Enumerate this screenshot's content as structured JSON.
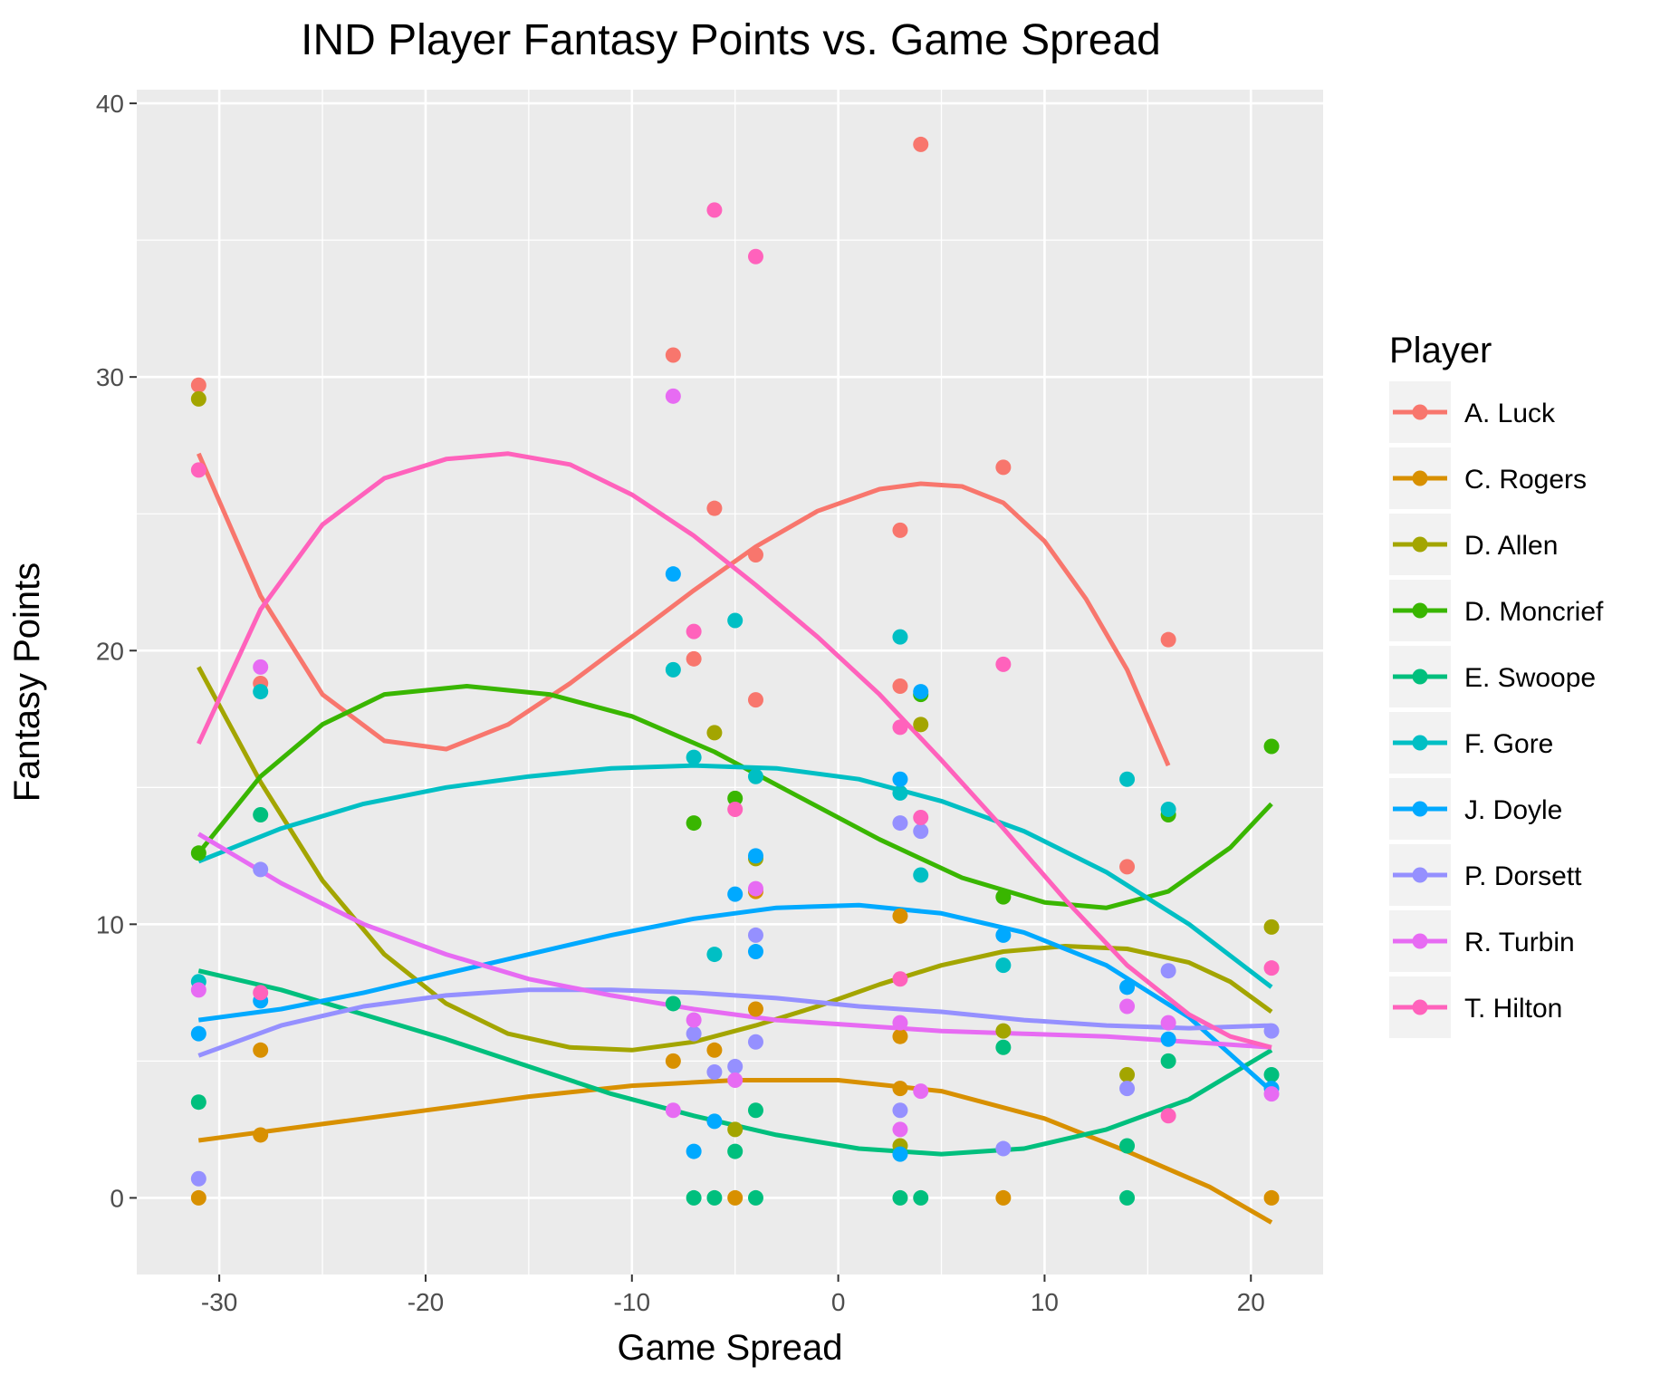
{
  "chart_data": {
    "type": "scatter",
    "title": "IND Player Fantasy Points vs. Game Spread",
    "xlabel": "Game Spread",
    "ylabel": "Fantasy Points",
    "xlim": [
      -34,
      23.5
    ],
    "ylim": [
      -2.8,
      40.5
    ],
    "x_ticks": [
      -30,
      -20,
      -10,
      0,
      10,
      20
    ],
    "y_ticks": [
      0,
      10,
      20,
      30,
      40
    ],
    "grid": true,
    "legend_title": "Player",
    "legend_position": "right",
    "series": [
      {
        "name": "A. Luck",
        "color": "#F8766D",
        "points": [
          [
            -31,
            29.7
          ],
          [
            -28,
            18.8
          ],
          [
            -8,
            30.8
          ],
          [
            -7,
            19.7
          ],
          [
            -6,
            25.2
          ],
          [
            -4,
            23.5
          ],
          [
            -4,
            18.2
          ],
          [
            3,
            24.4
          ],
          [
            3,
            18.7
          ],
          [
            4,
            38.5
          ],
          [
            8,
            26.7
          ],
          [
            14,
            12.1
          ],
          [
            16,
            20.4
          ]
        ],
        "trend": [
          [
            -31,
            27.2
          ],
          [
            -28,
            22.0
          ],
          [
            -25,
            18.4
          ],
          [
            -22,
            16.7
          ],
          [
            -19,
            16.4
          ],
          [
            -16,
            17.3
          ],
          [
            -13,
            18.8
          ],
          [
            -10,
            20.5
          ],
          [
            -7,
            22.2
          ],
          [
            -4,
            23.8
          ],
          [
            -1,
            25.1
          ],
          [
            2,
            25.9
          ],
          [
            4,
            26.1
          ],
          [
            6,
            26.0
          ],
          [
            8,
            25.4
          ],
          [
            10,
            24.0
          ],
          [
            12,
            21.9
          ],
          [
            14,
            19.3
          ],
          [
            16,
            15.8
          ]
        ]
      },
      {
        "name": "C. Rogers",
        "color": "#D89000",
        "points": [
          [
            -31,
            0.0
          ],
          [
            -28,
            5.4
          ],
          [
            -28,
            2.3
          ],
          [
            -8,
            5.0
          ],
          [
            -6,
            5.4
          ],
          [
            -5,
            0.0
          ],
          [
            -4,
            11.2
          ],
          [
            -4,
            6.9
          ],
          [
            3,
            10.3
          ],
          [
            3,
            5.9
          ],
          [
            3,
            4.0
          ],
          [
            8,
            0.0
          ],
          [
            21,
            0.0
          ]
        ],
        "trend": [
          [
            -31,
            2.1
          ],
          [
            -25,
            2.7
          ],
          [
            -20,
            3.2
          ],
          [
            -15,
            3.7
          ],
          [
            -10,
            4.1
          ],
          [
            -5,
            4.3
          ],
          [
            0,
            4.3
          ],
          [
            5,
            3.9
          ],
          [
            10,
            2.9
          ],
          [
            14,
            1.7
          ],
          [
            18,
            0.4
          ],
          [
            21,
            -0.9
          ]
        ]
      },
      {
        "name": "D. Allen",
        "color": "#A3A500",
        "points": [
          [
            -31,
            29.2
          ],
          [
            -6,
            17.0
          ],
          [
            -5,
            2.5
          ],
          [
            -4,
            12.4
          ],
          [
            3,
            1.9
          ],
          [
            4,
            17.3
          ],
          [
            8,
            6.1
          ],
          [
            14,
            4.5
          ],
          [
            21,
            9.9
          ]
        ],
        "trend": [
          [
            -31,
            19.4
          ],
          [
            -28,
            15.2
          ],
          [
            -25,
            11.6
          ],
          [
            -22,
            8.9
          ],
          [
            -19,
            7.1
          ],
          [
            -16,
            6.0
          ],
          [
            -13,
            5.5
          ],
          [
            -10,
            5.4
          ],
          [
            -7,
            5.7
          ],
          [
            -4,
            6.3
          ],
          [
            -1,
            7.0
          ],
          [
            2,
            7.8
          ],
          [
            5,
            8.5
          ],
          [
            8,
            9.0
          ],
          [
            11,
            9.2
          ],
          [
            14,
            9.1
          ],
          [
            17,
            8.6
          ],
          [
            19,
            7.9
          ],
          [
            21,
            6.8
          ]
        ]
      },
      {
        "name": "D. Moncrief",
        "color": "#39B600",
        "points": [
          [
            -31,
            12.6
          ],
          [
            -7,
            13.7
          ],
          [
            -5,
            14.6
          ],
          [
            4,
            18.4
          ],
          [
            8,
            11.0
          ],
          [
            16,
            14.0
          ],
          [
            21,
            16.5
          ]
        ],
        "trend": [
          [
            -31,
            12.6
          ],
          [
            -28,
            15.4
          ],
          [
            -25,
            17.3
          ],
          [
            -22,
            18.4
          ],
          [
            -18,
            18.7
          ],
          [
            -14,
            18.4
          ],
          [
            -10,
            17.6
          ],
          [
            -6,
            16.3
          ],
          [
            -2,
            14.7
          ],
          [
            2,
            13.1
          ],
          [
            6,
            11.7
          ],
          [
            10,
            10.8
          ],
          [
            13,
            10.6
          ],
          [
            16,
            11.2
          ],
          [
            19,
            12.8
          ],
          [
            21,
            14.4
          ]
        ]
      },
      {
        "name": "E. Swoope",
        "color": "#00BF7D",
        "points": [
          [
            -31,
            3.5
          ],
          [
            -28,
            14.0
          ],
          [
            -8,
            7.1
          ],
          [
            -7,
            0.0
          ],
          [
            -6,
            0.0
          ],
          [
            -5,
            1.7
          ],
          [
            -4,
            3.2
          ],
          [
            -4,
            0.0
          ],
          [
            3,
            0.0
          ],
          [
            4,
            0.0
          ],
          [
            8,
            5.5
          ],
          [
            14,
            1.9
          ],
          [
            14,
            0.0
          ],
          [
            16,
            5.0
          ],
          [
            21,
            4.5
          ]
        ],
        "trend": [
          [
            -31,
            8.3
          ],
          [
            -27,
            7.6
          ],
          [
            -23,
            6.7
          ],
          [
            -19,
            5.8
          ],
          [
            -15,
            4.8
          ],
          [
            -11,
            3.8
          ],
          [
            -7,
            3.0
          ],
          [
            -3,
            2.3
          ],
          [
            1,
            1.8
          ],
          [
            5,
            1.6
          ],
          [
            9,
            1.8
          ],
          [
            13,
            2.5
          ],
          [
            17,
            3.6
          ],
          [
            21,
            5.4
          ]
        ]
      },
      {
        "name": "F. Gore",
        "color": "#00BFC4",
        "points": [
          [
            -31,
            7.9
          ],
          [
            -28,
            18.5
          ],
          [
            -8,
            19.3
          ],
          [
            -7,
            16.1
          ],
          [
            -6,
            8.9
          ],
          [
            -5,
            21.1
          ],
          [
            -4,
            15.4
          ],
          [
            3,
            20.5
          ],
          [
            3,
            14.8
          ],
          [
            4,
            11.8
          ],
          [
            8,
            8.5
          ],
          [
            14,
            15.3
          ],
          [
            16,
            14.2
          ]
        ],
        "trend": [
          [
            -31,
            12.3
          ],
          [
            -27,
            13.5
          ],
          [
            -23,
            14.4
          ],
          [
            -19,
            15.0
          ],
          [
            -15,
            15.4
          ],
          [
            -11,
            15.7
          ],
          [
            -7,
            15.8
          ],
          [
            -3,
            15.7
          ],
          [
            1,
            15.3
          ],
          [
            5,
            14.5
          ],
          [
            9,
            13.4
          ],
          [
            13,
            11.9
          ],
          [
            17,
            10.0
          ],
          [
            21,
            7.7
          ]
        ]
      },
      {
        "name": "J. Doyle",
        "color": "#00A9FF",
        "points": [
          [
            -31,
            6.0
          ],
          [
            -28,
            7.2
          ],
          [
            -8,
            22.8
          ],
          [
            -7,
            1.7
          ],
          [
            -6,
            2.8
          ],
          [
            -5,
            11.1
          ],
          [
            -4,
            12.5
          ],
          [
            -4,
            9.0
          ],
          [
            3,
            15.3
          ],
          [
            3,
            1.6
          ],
          [
            4,
            18.5
          ],
          [
            8,
            9.6
          ],
          [
            14,
            7.7
          ],
          [
            16,
            5.8
          ],
          [
            21,
            4.0
          ]
        ],
        "trend": [
          [
            -31,
            6.5
          ],
          [
            -27,
            6.9
          ],
          [
            -23,
            7.5
          ],
          [
            -19,
            8.2
          ],
          [
            -15,
            8.9
          ],
          [
            -11,
            9.6
          ],
          [
            -7,
            10.2
          ],
          [
            -3,
            10.6
          ],
          [
            1,
            10.7
          ],
          [
            5,
            10.4
          ],
          [
            9,
            9.7
          ],
          [
            13,
            8.5
          ],
          [
            17,
            6.6
          ],
          [
            21,
            3.9
          ]
        ]
      },
      {
        "name": "P. Dorsett",
        "color": "#9590FF",
        "points": [
          [
            -31,
            0.7
          ],
          [
            -28,
            12.0
          ],
          [
            -7,
            6.0
          ],
          [
            -6,
            4.6
          ],
          [
            -5,
            4.8
          ],
          [
            -4,
            9.6
          ],
          [
            -4,
            5.7
          ],
          [
            3,
            13.7
          ],
          [
            3,
            3.2
          ],
          [
            4,
            13.4
          ],
          [
            8,
            1.8
          ],
          [
            14,
            4.0
          ],
          [
            16,
            8.3
          ],
          [
            21,
            6.1
          ]
        ],
        "trend": [
          [
            -31,
            5.2
          ],
          [
            -27,
            6.3
          ],
          [
            -23,
            7.0
          ],
          [
            -19,
            7.4
          ],
          [
            -15,
            7.6
          ],
          [
            -11,
            7.6
          ],
          [
            -7,
            7.5
          ],
          [
            -3,
            7.3
          ],
          [
            1,
            7.0
          ],
          [
            5,
            6.8
          ],
          [
            9,
            6.5
          ],
          [
            13,
            6.3
          ],
          [
            17,
            6.2
          ],
          [
            21,
            6.3
          ]
        ]
      },
      {
        "name": "R. Turbin",
        "color": "#E76BF3",
        "points": [
          [
            -31,
            7.6
          ],
          [
            -28,
            19.4
          ],
          [
            -8,
            29.3
          ],
          [
            -8,
            3.2
          ],
          [
            -7,
            6.5
          ],
          [
            -5,
            4.3
          ],
          [
            -4,
            11.3
          ],
          [
            3,
            6.4
          ],
          [
            3,
            2.5
          ],
          [
            4,
            3.9
          ],
          [
            14,
            7.0
          ],
          [
            16,
            6.4
          ],
          [
            21,
            3.8
          ]
        ],
        "trend": [
          [
            -31,
            13.3
          ],
          [
            -27,
            11.5
          ],
          [
            -23,
            10.0
          ],
          [
            -19,
            8.9
          ],
          [
            -15,
            8.0
          ],
          [
            -11,
            7.4
          ],
          [
            -7,
            6.9
          ],
          [
            -3,
            6.5
          ],
          [
            1,
            6.3
          ],
          [
            5,
            6.1
          ],
          [
            9,
            6.0
          ],
          [
            13,
            5.9
          ],
          [
            17,
            5.7
          ],
          [
            21,
            5.5
          ]
        ]
      },
      {
        "name": "T. Hilton",
        "color": "#FF62BC",
        "points": [
          [
            -31,
            26.6
          ],
          [
            -28,
            7.5
          ],
          [
            -7,
            20.7
          ],
          [
            -6,
            36.1
          ],
          [
            -5,
            14.2
          ],
          [
            -4,
            34.4
          ],
          [
            3,
            17.2
          ],
          [
            3,
            8.0
          ],
          [
            4,
            13.9
          ],
          [
            8,
            19.5
          ],
          [
            16,
            3.0
          ],
          [
            21,
            8.4
          ]
        ],
        "trend": [
          [
            -31,
            16.6
          ],
          [
            -28,
            21.5
          ],
          [
            -25,
            24.6
          ],
          [
            -22,
            26.3
          ],
          [
            -19,
            27.0
          ],
          [
            -16,
            27.2
          ],
          [
            -13,
            26.8
          ],
          [
            -10,
            25.7
          ],
          [
            -7,
            24.2
          ],
          [
            -4,
            22.4
          ],
          [
            -1,
            20.5
          ],
          [
            2,
            18.4
          ],
          [
            5,
            16.0
          ],
          [
            8,
            13.5
          ],
          [
            11,
            10.9
          ],
          [
            14,
            8.5
          ],
          [
            17,
            6.7
          ],
          [
            19,
            5.9
          ],
          [
            21,
            5.5
          ]
        ]
      }
    ]
  }
}
